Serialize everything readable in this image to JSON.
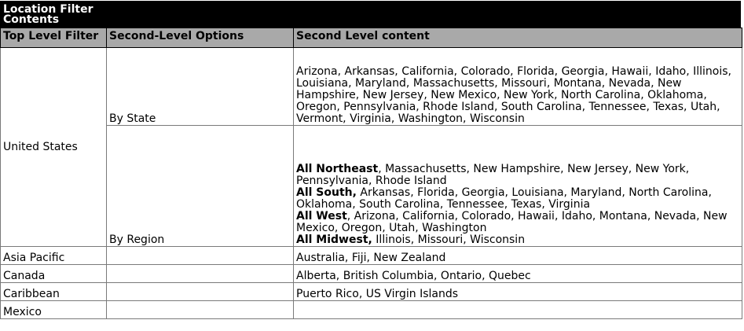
{
  "title": {
    "line1": "Location Filter",
    "line2": "Contents"
  },
  "headers": {
    "col1": "Top Level Filter",
    "col2": "Second-Level Options",
    "col3": "Second Level content"
  },
  "us": {
    "label": "United States",
    "by_state": {
      "option": "By State",
      "content": "Arizona, Arkansas, California, Colorado, Florida, Georgia, Hawaii, Idaho, Illinois, Louisiana, Maryland, Massachusetts, Missouri, Montana, Nevada, New Hampshire, New Jersey, New Mexico, New York, North Carolina, Oklahoma, Oregon, Pennsylvania, Rhode Island, South Carolina, Tennessee, Texas, Utah, Vermont, Virginia, Washington, Wisconsin"
    },
    "by_region": {
      "option": "By Region",
      "northeast_label": "All Northeast",
      "northeast_list": ", Massachusetts, New Hampshire,  New Jersey, New York, Pennsylvania, Rhode Island",
      "south_label": "All South,",
      "south_list": " Arkansas, Florida, Georgia, Louisiana, Maryland, North Carolina, Oklahoma, South Carolina, Tennessee, Texas, Virginia",
      "west_label": "All West",
      "west_list": ", Arizona, California, Colorado, Hawaii, Idaho, Montana, Nevada, New Mexico, Oregon, Utah, Washington",
      "midwest_label": "All Midwest,",
      "midwest_list": " Illinois, Missouri, Wisconsin"
    }
  },
  "rows": [
    {
      "region": "Asia Pacific",
      "option": "",
      "content": "Australia, Fiji, New Zealand"
    },
    {
      "region": "Canada",
      "option": "",
      "content": "Alberta, British Columbia, Ontario, Quebec"
    },
    {
      "region": "Caribbean",
      "option": "",
      "content": "Puerto Rico, US Virgin Islands"
    },
    {
      "region": "Mexico",
      "option": "",
      "content": ""
    }
  ]
}
